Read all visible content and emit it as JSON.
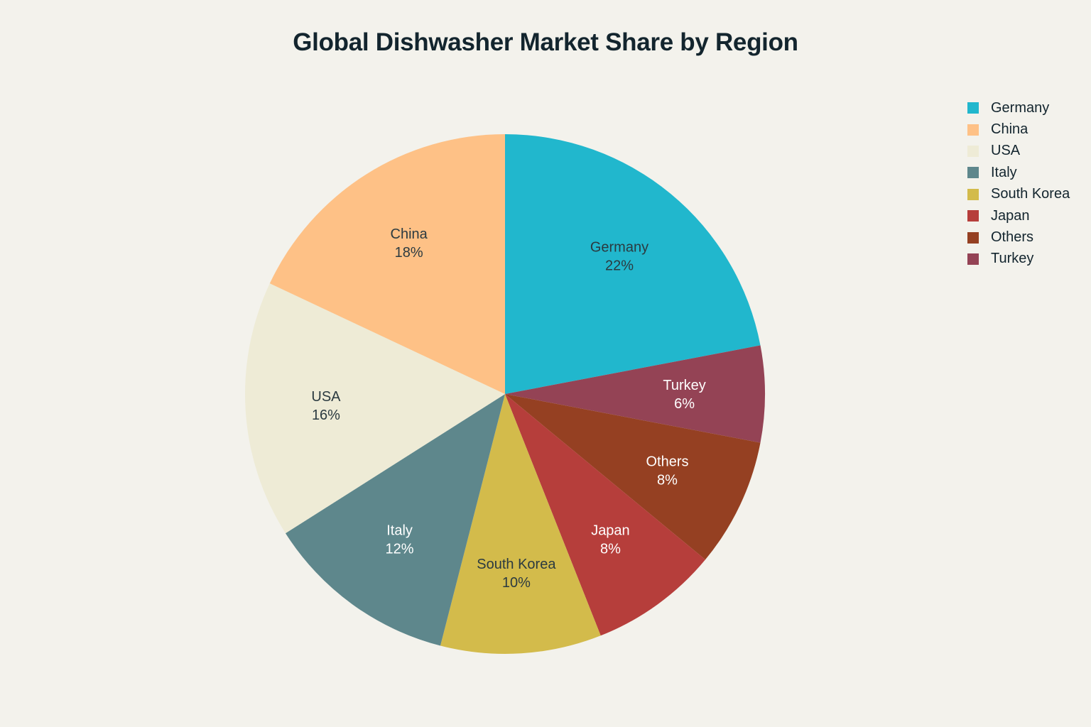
{
  "chart_data": {
    "type": "pie",
    "title": "Global Dishwasher Market Share by Region",
    "legend_position": "top-right",
    "slices": [
      {
        "label": "Germany",
        "value": 22,
        "display": "22%",
        "color": "#21b7cd",
        "text_color": "#2b3a40"
      },
      {
        "label": "Turkey",
        "value": 6,
        "display": "6%",
        "color": "#944355",
        "text_color": "#ffffff"
      },
      {
        "label": "Others",
        "value": 8,
        "display": "8%",
        "color": "#954022",
        "text_color": "#ffffff"
      },
      {
        "label": "Japan",
        "value": 8,
        "display": "8%",
        "color": "#b63e3b",
        "text_color": "#ffffff"
      },
      {
        "label": "South Korea",
        "value": 10,
        "display": "10%",
        "color": "#d3bb4b",
        "text_color": "#2b3a40"
      },
      {
        "label": "Italy",
        "value": 12,
        "display": "12%",
        "color": "#5e878c",
        "text_color": "#ffffff"
      },
      {
        "label": "USA",
        "value": 16,
        "display": "16%",
        "color": "#eeebd6",
        "text_color": "#2b3a40"
      },
      {
        "label": "China",
        "value": 18,
        "display": "18%",
        "color": "#fec186",
        "text_color": "#2b3a40"
      }
    ],
    "legend": [
      "Germany",
      "China",
      "USA",
      "Italy",
      "South Korea",
      "Japan",
      "Others",
      "Turkey"
    ]
  }
}
